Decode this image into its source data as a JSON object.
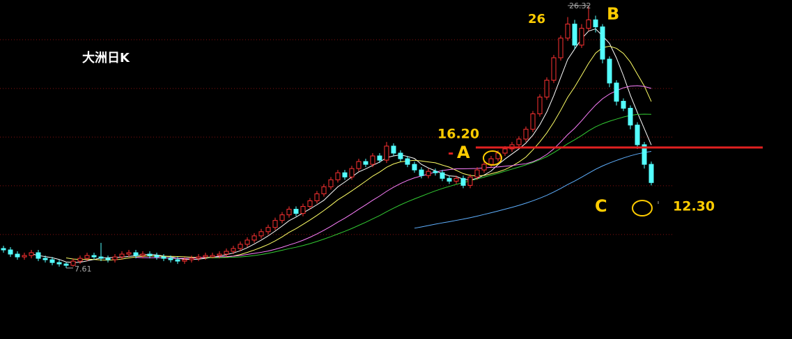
{
  "chart_data": {
    "type": "candlestick",
    "title": "大洲日K",
    "ylim": [
      7.61,
      26.32
    ],
    "grid_lines": [
      10.0,
      13.47,
      16.94,
      20.41,
      23.89
    ],
    "up_color": "#ff3232",
    "down_color": "#54ffff",
    "open": [
      9.0,
      8.9,
      8.6,
      8.4,
      8.5,
      8.7,
      8.3,
      8.2,
      8.0,
      7.9,
      7.8,
      8.1,
      8.3,
      8.5,
      8.4,
      8.3,
      8.2,
      8.4,
      8.6,
      8.7,
      8.5,
      8.6,
      8.5,
      8.4,
      8.3,
      8.2,
      8.1,
      8.2,
      8.3,
      8.4,
      8.4,
      8.5,
      8.6,
      8.8,
      9.0,
      9.3,
      9.6,
      9.9,
      10.2,
      10.5,
      11.0,
      11.4,
      11.8,
      11.5,
      12.0,
      12.4,
      12.9,
      13.4,
      13.9,
      14.4,
      14.1,
      14.7,
      15.2,
      15.0,
      15.6,
      15.3,
      16.3,
      15.8,
      15.4,
      15.0,
      14.6,
      14.2,
      14.5,
      14.4,
      14.0,
      13.8,
      14.0,
      13.5,
      14.1,
      14.6,
      15.0,
      15.4,
      15.8,
      16.1,
      16.4,
      16.8,
      17.5,
      18.6,
      19.8,
      21.0,
      22.6,
      24.0,
      25.0,
      23.5,
      24.7,
      25.3,
      24.8,
      22.5,
      20.8,
      19.5,
      19.0,
      17.8,
      16.4,
      15.0
    ],
    "high": [
      9.2,
      9.1,
      8.8,
      8.7,
      8.9,
      8.9,
      8.5,
      8.4,
      8.2,
      8.0,
      8.3,
      8.5,
      8.7,
      8.7,
      9.4,
      8.5,
      8.6,
      8.8,
      8.9,
      8.9,
      8.8,
      8.8,
      8.7,
      8.6,
      8.5,
      8.4,
      8.4,
      8.5,
      8.6,
      8.7,
      8.7,
      8.8,
      9.0,
      9.2,
      9.5,
      9.8,
      10.1,
      10.4,
      10.7,
      11.2,
      11.6,
      12.0,
      12.0,
      12.2,
      12.6,
      13.1,
      13.6,
      14.1,
      14.6,
      14.6,
      14.9,
      15.4,
      15.4,
      15.8,
      15.8,
      16.6,
      16.5,
      16.0,
      15.6,
      15.2,
      14.8,
      14.7,
      14.7,
      14.6,
      14.2,
      14.2,
      14.2,
      14.3,
      14.8,
      15.2,
      15.6,
      16.0,
      16.3,
      16.6,
      17.0,
      17.7,
      18.8,
      20.0,
      21.2,
      22.8,
      24.2,
      25.5,
      25.3,
      25.0,
      26.32,
      25.6,
      25.0,
      22.7,
      21.0,
      19.7,
      19.2,
      18.0,
      16.6,
      15.2
    ],
    "low": [
      8.7,
      8.4,
      8.2,
      8.2,
      8.3,
      8.1,
      8.0,
      7.8,
      7.7,
      7.61,
      7.7,
      7.9,
      8.1,
      8.2,
      8.1,
      8.0,
      8.0,
      8.2,
      8.4,
      8.3,
      8.3,
      8.3,
      8.2,
      8.1,
      8.0,
      7.9,
      7.9,
      8.0,
      8.1,
      8.2,
      8.3,
      8.3,
      8.4,
      8.6,
      8.8,
      9.1,
      9.4,
      9.7,
      10.0,
      10.3,
      10.8,
      11.2,
      11.3,
      11.3,
      11.8,
      12.2,
      12.7,
      13.2,
      13.7,
      13.9,
      13.9,
      14.5,
      14.8,
      14.8,
      15.1,
      15.1,
      15.6,
      15.2,
      14.8,
      14.4,
      14.0,
      14.0,
      14.2,
      13.8,
      13.6,
      13.6,
      13.3,
      13.3,
      13.9,
      14.4,
      14.8,
      15.2,
      15.6,
      15.9,
      16.2,
      16.6,
      17.3,
      18.4,
      19.6,
      20.8,
      22.4,
      23.8,
      23.2,
      23.3,
      24.5,
      24.4,
      22.2,
      20.5,
      19.2,
      18.8,
      17.5,
      16.1,
      14.7,
      13.5
    ],
    "close": [
      8.9,
      8.6,
      8.4,
      8.5,
      8.7,
      8.3,
      8.2,
      8.0,
      7.9,
      7.8,
      8.1,
      8.3,
      8.5,
      8.4,
      8.3,
      8.2,
      8.4,
      8.6,
      8.7,
      8.5,
      8.6,
      8.5,
      8.4,
      8.3,
      8.2,
      8.1,
      8.2,
      8.3,
      8.4,
      8.5,
      8.5,
      8.6,
      8.8,
      9.0,
      9.3,
      9.6,
      9.9,
      10.2,
      10.5,
      11.0,
      11.4,
      11.8,
      11.5,
      12.0,
      12.4,
      12.9,
      13.4,
      13.9,
      14.4,
      14.1,
      14.7,
      15.2,
      15.0,
      15.6,
      15.3,
      16.3,
      15.8,
      15.4,
      15.0,
      14.6,
      14.2,
      14.5,
      14.4,
      14.0,
      13.8,
      14.0,
      13.5,
      14.1,
      14.6,
      15.0,
      15.4,
      15.8,
      16.1,
      16.4,
      16.8,
      17.5,
      18.6,
      19.8,
      21.0,
      22.6,
      24.0,
      25.0,
      23.5,
      24.7,
      25.3,
      24.8,
      22.5,
      20.8,
      19.5,
      19.0,
      17.8,
      16.4,
      15.0,
      13.7
    ],
    "moving_averages": [
      {
        "period": 5,
        "color": "#ffffff"
      },
      {
        "period": 10,
        "color": "#ffff66"
      },
      {
        "period": 20,
        "color": "#ff80ff"
      },
      {
        "period": 30,
        "color": "#33cc33"
      },
      {
        "period": 60,
        "color": "#5fb0ff"
      }
    ],
    "high_label": "26.32",
    "low_label": "7.61",
    "support_line": 16.2,
    "support_color": "#e02020",
    "annotations": {
      "peak": "26",
      "b": "B",
      "a_price": "16.20",
      "a_dash": "-",
      "a": "A",
      "c": "C",
      "c_price": "12.30"
    }
  }
}
